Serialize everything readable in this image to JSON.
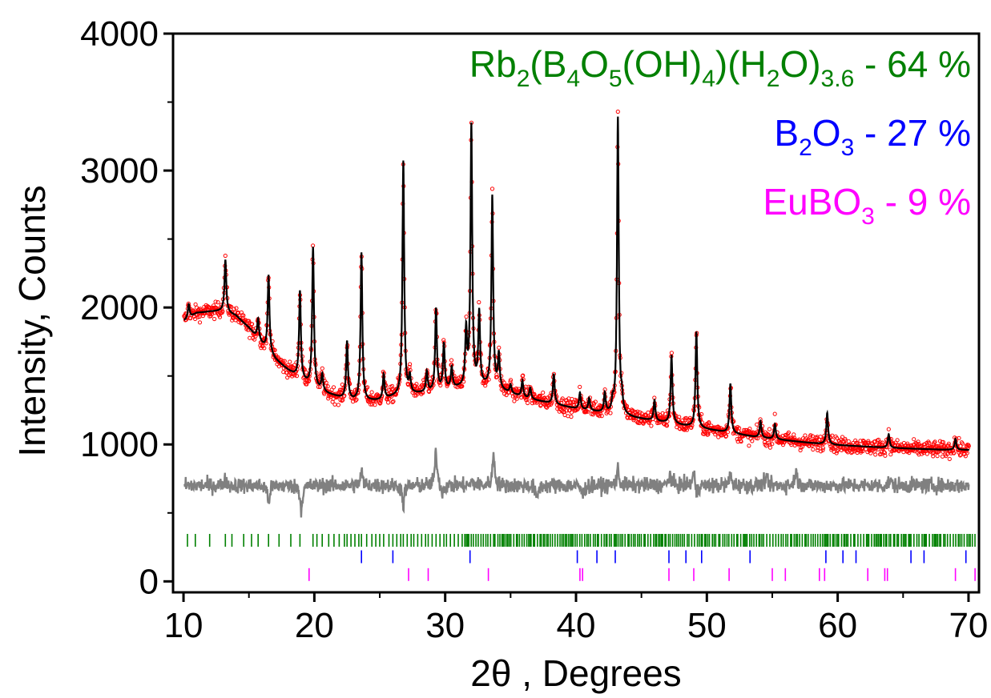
{
  "chart_data": {
    "type": "line",
    "xlabel_main": "2θ",
    "xlabel_rest": " , Degrees",
    "ylabel": "Intensity, Counts",
    "xlim": [
      9.2,
      70.8
    ],
    "ylim": [
      -80,
      4000
    ],
    "x_ticks": [
      10,
      20,
      30,
      40,
      50,
      60,
      70
    ],
    "y_ticks": [
      0,
      1000,
      2000,
      3000,
      4000
    ],
    "x_tick_labels": [
      "10",
      "20",
      "30",
      "40",
      "50",
      "60",
      "70"
    ],
    "y_tick_labels": [
      "0",
      "1000",
      "2000",
      "3000",
      "4000"
    ],
    "grid": false,
    "colors": {
      "observed": "#ff0000",
      "calculated": "#000000",
      "difference": "#808080",
      "phase1": "#008000",
      "phase2": "#0000ff",
      "phase3": "#ff00ff"
    },
    "legend": [
      {
        "color": "#008000",
        "parts": [
          {
            "t": "Rb"
          },
          {
            "t": "2",
            "sub": true
          },
          {
            "t": "(B"
          },
          {
            "t": "4",
            "sub": true
          },
          {
            "t": "O"
          },
          {
            "t": "5",
            "sub": true
          },
          {
            "t": "(OH)"
          },
          {
            "t": "4",
            "sub": true
          },
          {
            "t": ")(H"
          },
          {
            "t": "2",
            "sub": true
          },
          {
            "t": "O)"
          },
          {
            "t": "3.6",
            "sub": true
          },
          {
            "t": " - 64 %"
          }
        ]
      },
      {
        "color": "#0000ff",
        "parts": [
          {
            "t": "B"
          },
          {
            "t": "2",
            "sub": true
          },
          {
            "t": "O"
          },
          {
            "t": "3",
            "sub": true
          },
          {
            "t": " - 27 %"
          }
        ]
      },
      {
        "color": "#ff00ff",
        "parts": [
          {
            "t": "EuBO"
          },
          {
            "t": "3",
            "sub": true
          },
          {
            "t": " -  9 %"
          }
        ]
      }
    ],
    "background": [
      [
        10,
        1900
      ],
      [
        11,
        1960
      ],
      [
        12,
        1970
      ],
      [
        13,
        1975
      ],
      [
        14,
        1940
      ],
      [
        15,
        1850
      ],
      [
        16,
        1730
      ],
      [
        17,
        1620
      ],
      [
        18,
        1540
      ],
      [
        19,
        1470
      ],
      [
        20,
        1410
      ],
      [
        21,
        1370
      ],
      [
        22,
        1340
      ],
      [
        23,
        1320
      ],
      [
        24,
        1315
      ],
      [
        25,
        1320
      ],
      [
        26,
        1345
      ],
      [
        27,
        1360
      ],
      [
        28,
        1370
      ],
      [
        29,
        1380
      ],
      [
        30,
        1400
      ],
      [
        31,
        1410
      ],
      [
        32,
        1420
      ],
      [
        33,
        1420
      ],
      [
        34,
        1400
      ],
      [
        35,
        1370
      ],
      [
        36,
        1340
      ],
      [
        38,
        1300
      ],
      [
        40,
        1260
      ],
      [
        42,
        1230
      ],
      [
        44,
        1200
      ],
      [
        46,
        1170
      ],
      [
        48,
        1140
      ],
      [
        50,
        1110
      ],
      [
        52,
        1080
      ],
      [
        54,
        1050
      ],
      [
        56,
        1030
      ],
      [
        58,
        1010
      ],
      [
        60,
        995
      ],
      [
        62,
        985
      ],
      [
        64,
        975
      ],
      [
        66,
        968
      ],
      [
        68,
        962
      ],
      [
        70,
        960
      ]
    ],
    "peaks": [
      [
        10.4,
        100
      ],
      [
        13.2,
        380
      ],
      [
        15.7,
        150
      ],
      [
        16.5,
        560
      ],
      [
        18.9,
        640
      ],
      [
        19.9,
        1020
      ],
      [
        20.6,
        120
      ],
      [
        22.5,
        420
      ],
      [
        23.6,
        1080
      ],
      [
        25.3,
        180
      ],
      [
        26.8,
        1710
      ],
      [
        27.3,
        120
      ],
      [
        28.6,
        150
      ],
      [
        29.3,
        600
      ],
      [
        29.9,
        330
      ],
      [
        30.5,
        150
      ],
      [
        31.6,
        400
      ],
      [
        32.0,
        1900
      ],
      [
        32.6,
        530
      ],
      [
        33.6,
        1400
      ],
      [
        34.1,
        250
      ],
      [
        35.0,
        60
      ],
      [
        35.9,
        120
      ],
      [
        36.5,
        80
      ],
      [
        38.3,
        220
      ],
      [
        40.3,
        120
      ],
      [
        41.0,
        90
      ],
      [
        42.2,
        140
      ],
      [
        42.8,
        80
      ],
      [
        43.2,
        2170
      ],
      [
        43.5,
        100
      ],
      [
        46.0,
        150
      ],
      [
        47.3,
        500
      ],
      [
        49.2,
        700
      ],
      [
        51.8,
        360
      ],
      [
        54.1,
        120
      ],
      [
        55.2,
        110
      ],
      [
        59.2,
        230
      ],
      [
        63.9,
        100
      ],
      [
        69.0,
        80
      ]
    ],
    "difference_peaks": [
      [
        29.3,
        250
      ],
      [
        33.7,
        230
      ],
      [
        23.6,
        100
      ],
      [
        32.1,
        130
      ],
      [
        43.2,
        120
      ],
      [
        47.2,
        90
      ],
      [
        49.0,
        110
      ],
      [
        51.8,
        80
      ],
      [
        56.8,
        110
      ],
      [
        13.2,
        40
      ],
      [
        16.5,
        -120
      ],
      [
        19.0,
        -180
      ],
      [
        26.8,
        -140
      ],
      [
        32.1,
        -100
      ],
      [
        37.0,
        -110
      ],
      [
        40.5,
        -80
      ],
      [
        49.2,
        -80
      ],
      [
        29.8,
        -60
      ],
      [
        54.5,
        60
      ],
      [
        64.0,
        40
      ]
    ],
    "difference_offset": 700,
    "bragg_ticks": [
      {
        "name": "Rb2(B4O5(OH)4)(H2O)3.6",
        "color": "#008000",
        "y": 300,
        "dense_from": 31.5,
        "positions": [
          10.3,
          10.9,
          12.0,
          13.2,
          13.7,
          14.6,
          15.2,
          15.7,
          16.5,
          17.3,
          18.2,
          18.9,
          19.9,
          20.2,
          20.6,
          21.1,
          21.5,
          21.9,
          22.3,
          22.5,
          22.8,
          23.1,
          23.4,
          23.6,
          24.0,
          24.4,
          24.7,
          25.0,
          25.3,
          25.7,
          26.0,
          26.3,
          26.6,
          26.8,
          27.1,
          27.4,
          27.6,
          27.9,
          28.2,
          28.5,
          28.7,
          29.0,
          29.3,
          29.6,
          29.9,
          30.1,
          30.4,
          30.7,
          31.0,
          31.3
        ]
      },
      {
        "name": "B2O3",
        "color": "#0000ff",
        "y": 180,
        "positions": [
          23.6,
          26.0,
          31.9,
          40.1,
          41.6,
          43.0,
          47.1,
          48.4,
          49.6,
          53.3,
          59.1,
          60.4,
          61.4,
          65.6,
          66.6,
          69.8
        ]
      },
      {
        "name": "EuBO3",
        "color": "#ff00ff",
        "y": 50,
        "positions": [
          19.6,
          27.2,
          28.7,
          33.3,
          40.3,
          40.5,
          47.1,
          49.0,
          51.7,
          55.0,
          56.0,
          58.6,
          59.0,
          62.3,
          63.6,
          63.8,
          69.0,
          70.5
        ]
      }
    ]
  }
}
